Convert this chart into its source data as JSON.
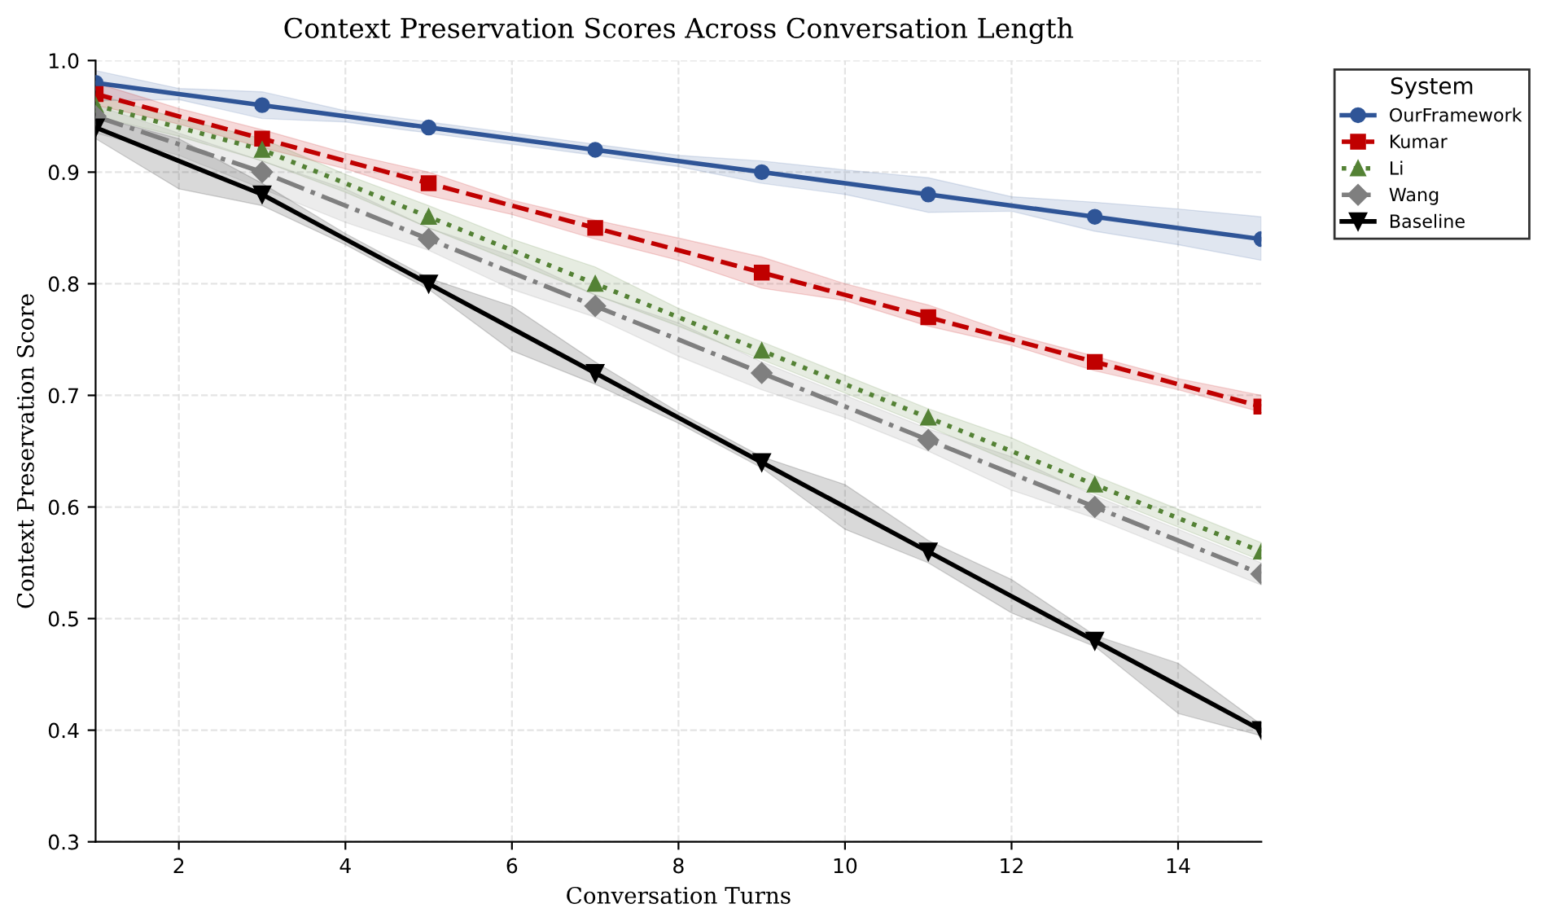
{
  "chart_data": {
    "type": "line",
    "title": "Context Preservation Scores Across Conversation Length",
    "xlabel": "Conversation Turns",
    "ylabel": "Context Preservation Score",
    "legend_title": "System",
    "legend": "top right",
    "grid": true,
    "x": [
      1,
      2,
      3,
      4,
      5,
      6,
      7,
      8,
      9,
      10,
      11,
      12,
      13,
      14,
      15
    ],
    "xlim": [
      1,
      15
    ],
    "xticks": [
      2,
      4,
      6,
      8,
      10,
      12,
      14
    ],
    "ylim": [
      0.3,
      1.0
    ],
    "yticks": [
      0.3,
      0.4,
      0.5,
      0.6,
      0.7,
      0.8,
      0.9,
      {
        "value": 1.0,
        "label": "1.0"
      }
    ],
    "series": [
      {
        "name": "OurFramework",
        "color": "#2f5597",
        "marker": "circle",
        "line_style": "solid",
        "values": [
          0.98,
          0.97,
          0.96,
          0.95,
          0.94,
          0.93,
          0.92,
          0.91,
          0.9,
          0.89,
          0.88,
          0.87,
          0.86,
          0.85,
          0.84
        ],
        "lower": [
          0.964,
          0.965,
          0.948,
          0.945,
          0.935,
          0.925,
          0.915,
          0.905,
          0.89,
          0.88,
          0.864,
          0.865,
          0.847,
          0.835,
          0.821
        ],
        "upper": [
          0.991,
          0.975,
          0.972,
          0.955,
          0.945,
          0.935,
          0.925,
          0.915,
          0.91,
          0.902,
          0.895,
          0.878,
          0.873,
          0.867,
          0.86
        ]
      },
      {
        "name": "Kumar",
        "color": "#c00000",
        "marker": "square",
        "line_style": "dashed",
        "values": [
          0.97,
          0.95,
          0.93,
          0.91,
          0.89,
          0.87,
          0.85,
          0.83,
          0.81,
          0.79,
          0.77,
          0.75,
          0.73,
          0.71,
          0.69
        ],
        "lower": [
          0.96,
          0.943,
          0.922,
          0.903,
          0.879,
          0.862,
          0.84,
          0.821,
          0.796,
          0.785,
          0.762,
          0.745,
          0.722,
          0.705,
          0.685
        ],
        "upper": [
          0.98,
          0.957,
          0.938,
          0.917,
          0.9,
          0.875,
          0.857,
          0.841,
          0.824,
          0.8,
          0.781,
          0.755,
          0.735,
          0.715,
          0.7
        ]
      },
      {
        "name": "Li",
        "color": "#548235",
        "marker": "triangle",
        "line_style": "dotted",
        "values": [
          0.96,
          0.94,
          0.92,
          0.89,
          0.86,
          0.83,
          0.8,
          0.77,
          0.74,
          0.71,
          0.68,
          0.65,
          0.62,
          0.59,
          0.56
        ],
        "lower": [
          0.95,
          0.932,
          0.91,
          0.882,
          0.85,
          0.82,
          0.79,
          0.762,
          0.732,
          0.702,
          0.672,
          0.64,
          0.612,
          0.582,
          0.552
        ],
        "upper": [
          0.97,
          0.948,
          0.93,
          0.898,
          0.87,
          0.84,
          0.815,
          0.778,
          0.748,
          0.718,
          0.688,
          0.662,
          0.628,
          0.598,
          0.568
        ]
      },
      {
        "name": "Wang",
        "color": "#7f7f7f",
        "marker": "diamond",
        "line_style": "dashdot",
        "values": [
          0.95,
          0.925,
          0.9,
          0.87,
          0.84,
          0.81,
          0.78,
          0.75,
          0.72,
          0.69,
          0.66,
          0.63,
          0.6,
          0.57,
          0.54
        ],
        "lower": [
          0.935,
          0.915,
          0.885,
          0.855,
          0.83,
          0.795,
          0.77,
          0.735,
          0.705,
          0.68,
          0.65,
          0.615,
          0.59,
          0.56,
          0.53
        ],
        "upper": [
          0.96,
          0.935,
          0.91,
          0.885,
          0.85,
          0.825,
          0.79,
          0.765,
          0.73,
          0.7,
          0.67,
          0.645,
          0.61,
          0.58,
          0.55
        ]
      },
      {
        "name": "Baseline",
        "color": "#000000",
        "marker": "triangle_down",
        "line_style": "solid",
        "values": [
          0.94,
          0.91,
          0.88,
          0.84,
          0.8,
          0.76,
          0.72,
          0.68,
          0.64,
          0.6,
          0.56,
          0.52,
          0.48,
          0.44,
          0.4
        ],
        "lower": [
          0.93,
          0.885,
          0.87,
          0.835,
          0.795,
          0.74,
          0.71,
          0.675,
          0.635,
          0.58,
          0.55,
          0.505,
          0.475,
          0.415,
          0.395
        ],
        "upper": [
          0.95,
          0.93,
          0.89,
          0.845,
          0.805,
          0.78,
          0.73,
          0.685,
          0.645,
          0.62,
          0.57,
          0.535,
          0.485,
          0.46,
          0.405
        ]
      }
    ]
  }
}
